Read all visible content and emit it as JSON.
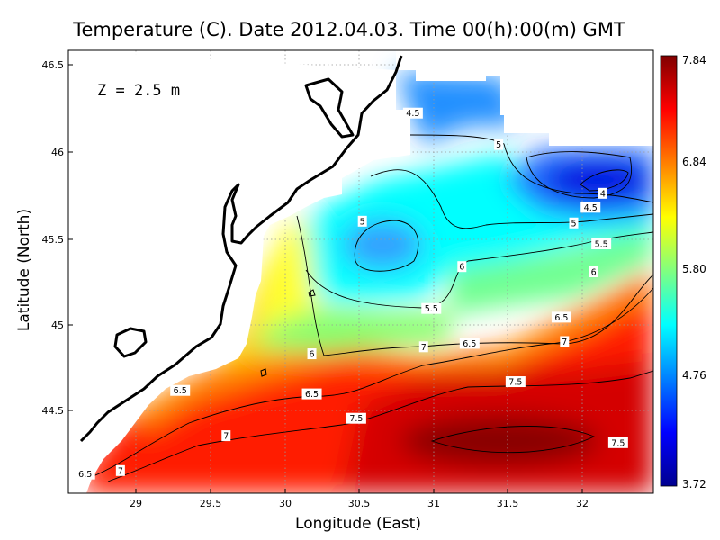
{
  "title": "Temperature (C). Date 2012.04.03. Time 00(h):00(m) GMT",
  "depth_label": "Z = 2.5 m",
  "chart_data": {
    "type": "heatmap",
    "title": "Temperature (C). Date 2012.04.03. Time 00(h):00(m) GMT",
    "xlabel": "Longitude (East)",
    "ylabel": "Latitude (North)",
    "xlim": [
      28.65,
      32.47
    ],
    "ylim": [
      44.03,
      46.57
    ],
    "x_ticks": [
      "29",
      "29.5",
      "30",
      "30.5",
      "31",
      "31.5",
      "32"
    ],
    "y_ticks": [
      "44.5",
      "45",
      "45.5",
      "46",
      "46.5"
    ],
    "grid": true,
    "colorbar": {
      "min": 3.72,
      "max": 7.84,
      "ticks": [
        "3.72",
        "4.76",
        "5.80",
        "6.84",
        "7.84"
      ],
      "colormap": [
        "#00008f",
        "#0000ff",
        "#0080ff",
        "#00ffff",
        "#80ff80",
        "#ffff00",
        "#ff8000",
        "#ff0000",
        "#800000"
      ]
    },
    "contour_labels": [
      {
        "text": "4.5",
        "lon": 30.9,
        "lat": 46.21
      },
      {
        "text": "5",
        "lon": 31.46,
        "lat": 46.03
      },
      {
        "text": "4",
        "lon": 32.14,
        "lat": 45.75
      },
      {
        "text": "4.5",
        "lon": 32.06,
        "lat": 45.67
      },
      {
        "text": "5",
        "lon": 30.57,
        "lat": 45.59
      },
      {
        "text": "5",
        "lon": 31.95,
        "lat": 45.58
      },
      {
        "text": "5.5",
        "lon": 32.13,
        "lat": 45.46
      },
      {
        "text": "6",
        "lon": 31.22,
        "lat": 45.33
      },
      {
        "text": "6",
        "lon": 32.08,
        "lat": 45.3
      },
      {
        "text": "5.5",
        "lon": 31.02,
        "lat": 45.09
      },
      {
        "text": "6.5",
        "lon": 31.87,
        "lat": 45.04
      },
      {
        "text": "7",
        "lon": 31.89,
        "lat": 44.9
      },
      {
        "text": "6.5",
        "lon": 31.27,
        "lat": 44.89
      },
      {
        "text": "7",
        "lon": 30.97,
        "lat": 44.87
      },
      {
        "text": "6",
        "lon": 30.24,
        "lat": 44.83
      },
      {
        "text": "6.5",
        "lon": 29.38,
        "lat": 44.62
      },
      {
        "text": "6.5",
        "lon": 30.24,
        "lat": 44.6
      },
      {
        "text": "7.5",
        "lon": 31.57,
        "lat": 44.67
      },
      {
        "text": "7.5",
        "lon": 30.53,
        "lat": 44.46
      },
      {
        "text": "7",
        "lon": 29.68,
        "lat": 44.36
      },
      {
        "text": "7.5",
        "lon": 32.24,
        "lat": 44.32
      },
      {
        "text": "6.5",
        "lon": 28.76,
        "lat": 44.14
      },
      {
        "text": "7",
        "lon": 28.99,
        "lat": 44.16
      }
    ]
  }
}
